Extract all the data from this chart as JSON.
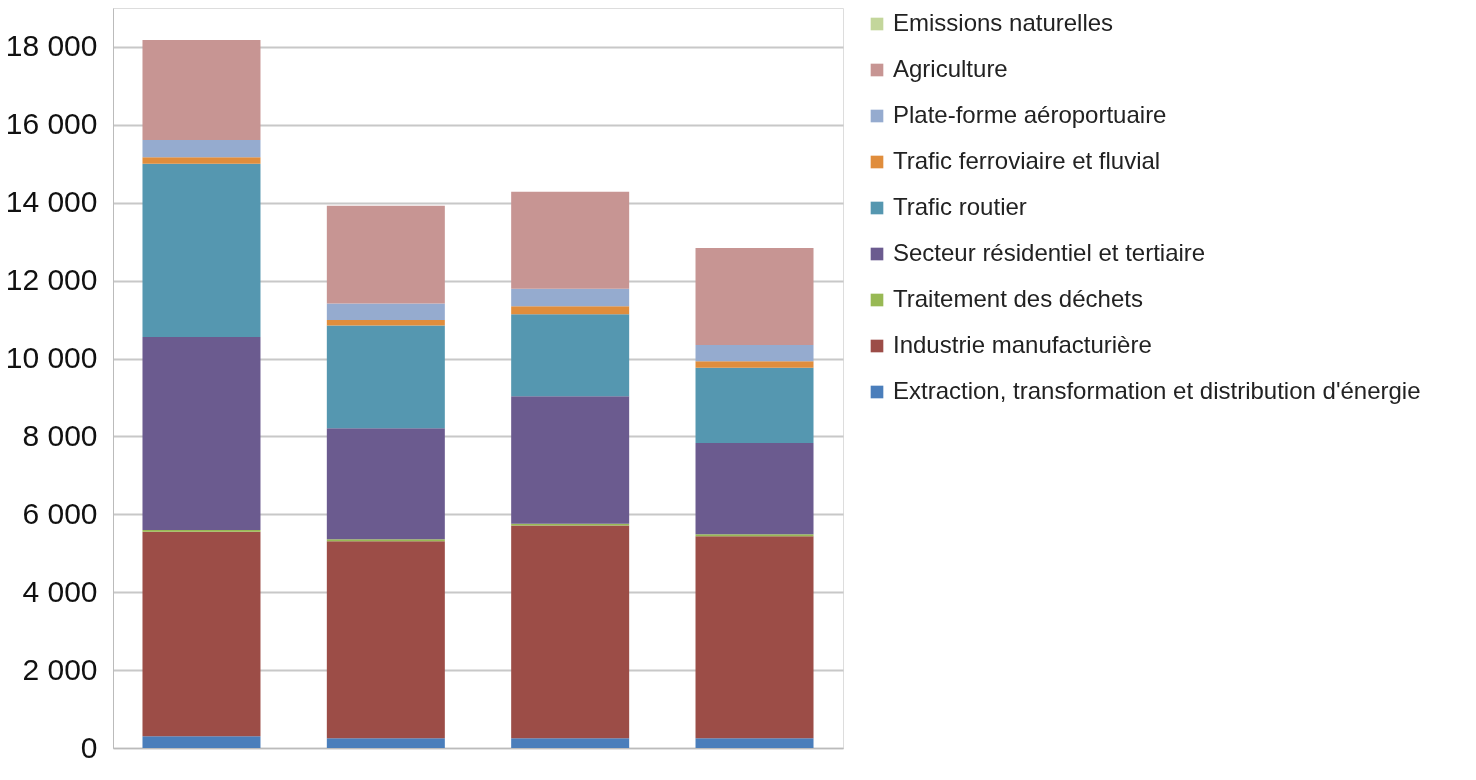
{
  "chart_data": {
    "type": "bar",
    "stacked": true,
    "categories": [
      null,
      null,
      null,
      null
    ],
    "series": [
      {
        "name": "Extraction, transformation et distribution d'énergie",
        "color": "#4a7ebb",
        "values": [
          300,
          250,
          250,
          250
        ]
      },
      {
        "name": "Industrie manufacturière",
        "color": "#9c4d47",
        "values": [
          5250,
          5060,
          5460,
          5190
        ]
      },
      {
        "name": "Traitement des déchets",
        "color": "#98b954",
        "values": [
          50,
          50,
          50,
          50
        ]
      },
      {
        "name": "Secteur résidentiel et tertiaire",
        "color": "#6b5b8f",
        "values": [
          4950,
          2850,
          3270,
          2340
        ]
      },
      {
        "name": "Trafic routier",
        "color": "#5597b0",
        "values": [
          4450,
          2640,
          2110,
          1930
        ]
      },
      {
        "name": "Trafic ferroviaire et fluvial",
        "color": "#e08d3c",
        "values": [
          170,
          140,
          200,
          170
        ]
      },
      {
        "name": "Plate-forme aéroportuaire",
        "color": "#95abcf",
        "values": [
          440,
          420,
          450,
          420
        ]
      },
      {
        "name": "Agriculture",
        "color": "#c79593",
        "values": [
          2570,
          2510,
          2490,
          2490
        ]
      },
      {
        "name": "Emissions naturelles",
        "color": "#c3d69b",
        "values": [
          0,
          0,
          0,
          0
        ]
      }
    ],
    "ylim": [
      0,
      19000
    ],
    "yticks": [
      {
        "value": 0,
        "label": "0"
      },
      {
        "value": 2000,
        "label": "2 000"
      },
      {
        "value": 4000,
        "label": "4 000"
      },
      {
        "value": 6000,
        "label": "6 000"
      },
      {
        "value": 8000,
        "label": "8 000"
      },
      {
        "value": 10000,
        "label": "10 000"
      },
      {
        "value": 12000,
        "label": "12 000"
      },
      {
        "value": 14000,
        "label": "14 000"
      },
      {
        "value": 16000,
        "label": "16 000"
      },
      {
        "value": 18000,
        "label": "18 000"
      }
    ],
    "grid": "y",
    "legend": "right",
    "tick_labels": "y"
  }
}
